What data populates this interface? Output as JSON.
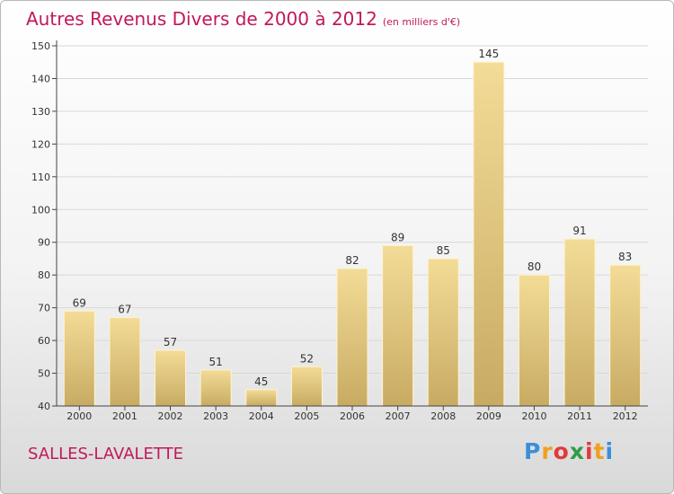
{
  "title": "Autres Revenus Divers de 2000 à 2012",
  "unit": "(en milliers d'€)",
  "location": "SALLES-LAVALETTE",
  "brand": {
    "letters": [
      "P",
      "r",
      "o",
      "x",
      "i",
      "t",
      "i"
    ],
    "logo_text": "Proxiti"
  },
  "colors": {
    "title": "#c2185b",
    "bar_light": "#f3dc97",
    "bar_dark": "#c8ab63",
    "grid": "#d8d8d8",
    "axis": "#444444"
  },
  "chart_data": {
    "type": "bar",
    "categories": [
      "2000",
      "2001",
      "2002",
      "2003",
      "2004",
      "2005",
      "2006",
      "2007",
      "2008",
      "2009",
      "2010",
      "2011",
      "2012"
    ],
    "values": [
      69,
      67,
      57,
      51,
      45,
      52,
      82,
      89,
      85,
      145,
      80,
      91,
      83
    ],
    "ylim": [
      40,
      150
    ],
    "yticks": [
      40,
      50,
      60,
      70,
      80,
      90,
      100,
      110,
      120,
      130,
      140,
      150
    ],
    "grid": true
  }
}
